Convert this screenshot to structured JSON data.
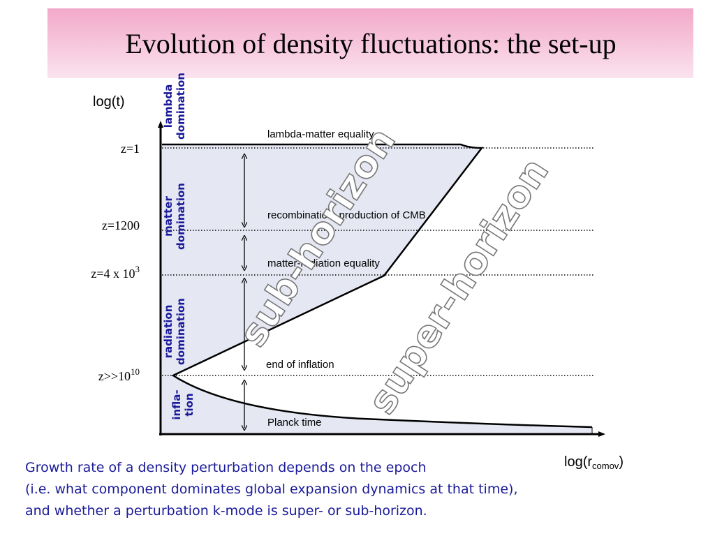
{
  "header": {
    "title": "Evolution of density fluctuations:  the set-up"
  },
  "diagram": {
    "y_axis_label": "log(t)",
    "x_axis_label": {
      "base": "log(r",
      "sub": "comov",
      "end": ")"
    },
    "epochs": [
      {
        "lines": [
          "lambda",
          "domination"
        ]
      },
      {
        "lines": [
          "matter",
          "domination"
        ]
      },
      {
        "lines": [
          "radiation",
          "domination"
        ]
      },
      {
        "lines": [
          "infla-",
          "tion"
        ]
      }
    ],
    "redshifts": [
      {
        "base": "z=1"
      },
      {
        "base": "z=1200"
      },
      {
        "base": "z=4 x 10",
        "sup": "3"
      },
      {
        "base": "z>>10",
        "sup": "10"
      }
    ],
    "events": [
      "lambda-matter equality",
      "recombination; production of CMB",
      "matter-radiation equality",
      "end of inflation",
      "Planck time"
    ],
    "regions": [
      "sub-horizon",
      "super-horizon"
    ]
  },
  "caption": [
    "Growth rate of a density perturbation depends on the epoch",
    "(i.e. what component dominates global expansion dynamics at that time),",
    "and whether a perturbation k-mode is super- or sub-horizon."
  ]
}
